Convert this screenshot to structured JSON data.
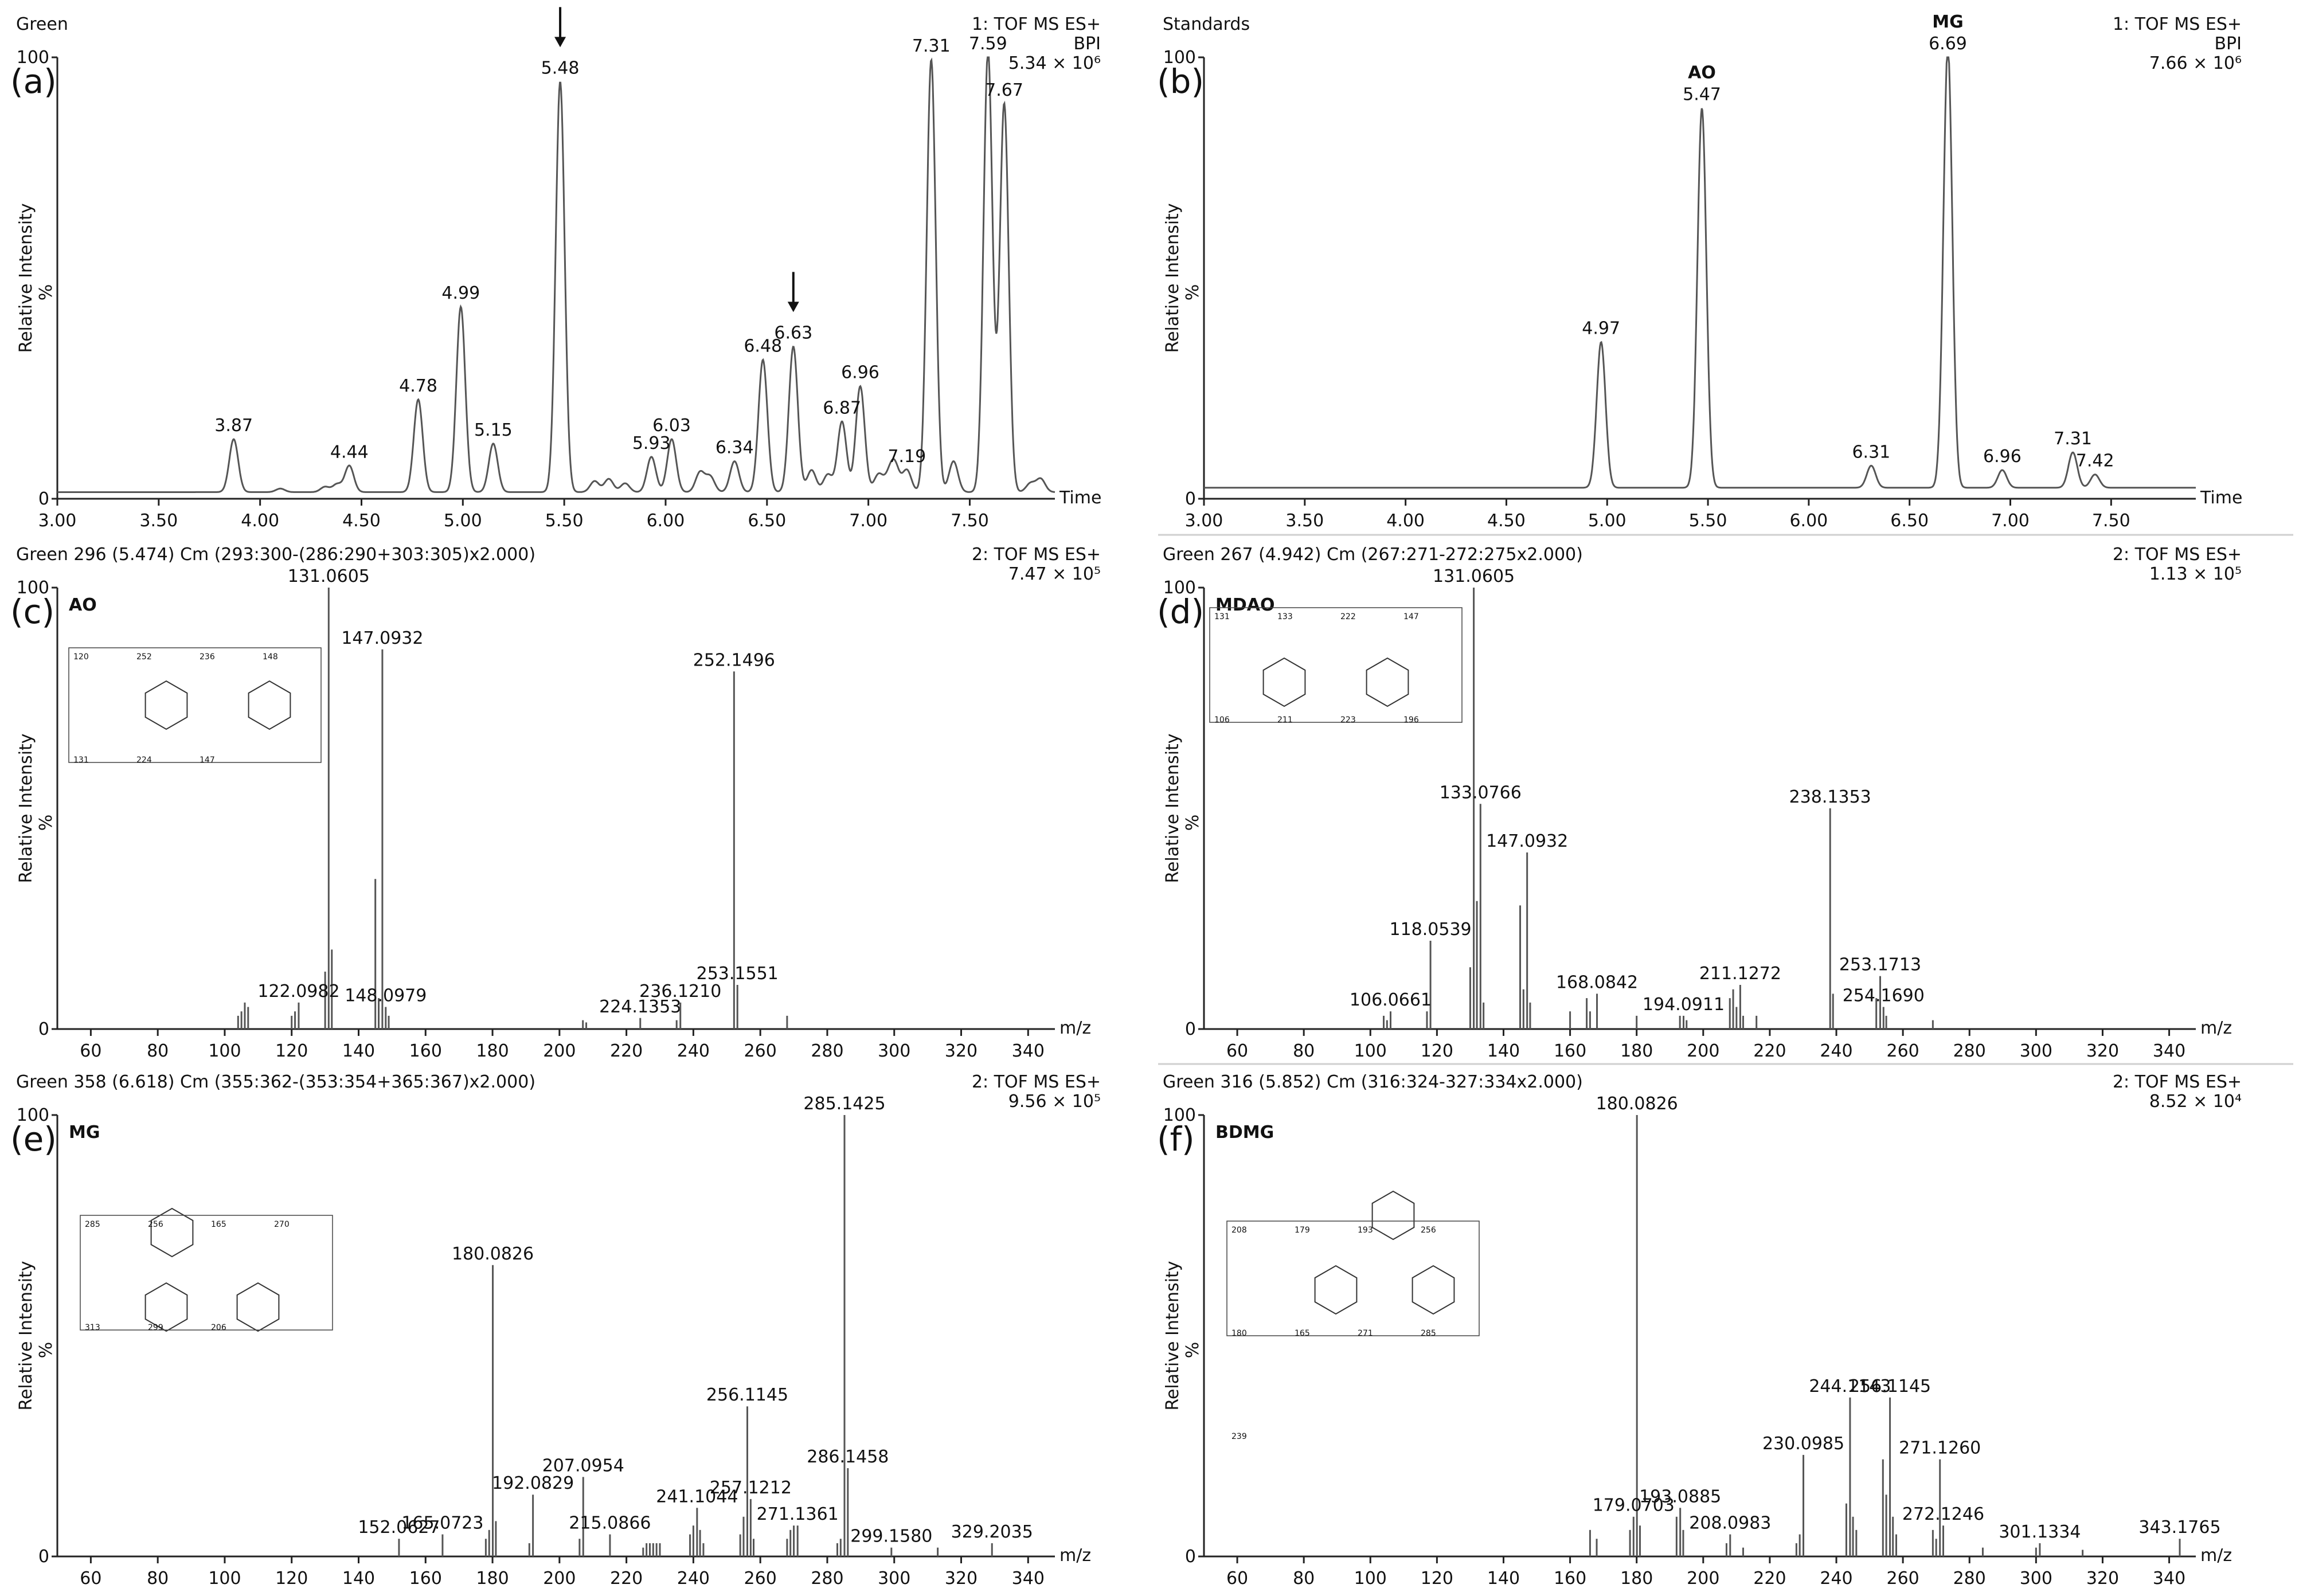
{
  "colors": {
    "trace": "#555555",
    "axis": "#222222",
    "text": "#111111",
    "separator": "#cfcfcf"
  },
  "chart_data": [
    {
      "id": "a",
      "type": "line",
      "panel_label": "(a)",
      "sample": "Green",
      "header_right": [
        "1: TOF MS ES+",
        "BPI",
        "5.34 × 10⁶"
      ],
      "xlabel": "Time",
      "ylabel": "Relative Intensity",
      "ylabel_unit": "%",
      "xlim": [
        3.0,
        7.92
      ],
      "ylim": [
        0,
        100
      ],
      "x_ticks": [
        "3.00",
        "3.50",
        "4.00",
        "4.50",
        "5.00",
        "5.50",
        "6.00",
        "6.50",
        "7.00",
        "7.50"
      ],
      "x_tick_values": [
        3.0,
        3.5,
        4.0,
        4.5,
        5.0,
        5.5,
        6.0,
        6.5,
        7.0,
        7.5
      ],
      "y_ticks": [
        "0",
        "100"
      ],
      "y_tick_values": [
        0,
        100
      ],
      "baseline": 1.5,
      "minor_peaks": [
        [
          4.1,
          0.8
        ],
        [
          4.32,
          1.2
        ],
        [
          4.38,
          1.8
        ],
        [
          5.65,
          2.5
        ],
        [
          5.72,
          3.0
        ],
        [
          5.8,
          2.0
        ],
        [
          6.17,
          4.5
        ],
        [
          6.22,
          3.5
        ],
        [
          6.72,
          5
        ],
        [
          6.8,
          4
        ],
        [
          7.05,
          4
        ],
        [
          7.1,
          3
        ],
        [
          7.13,
          6
        ],
        [
          7.42,
          7
        ],
        [
          7.8,
          2
        ],
        [
          7.85,
          3
        ]
      ],
      "peaks": [
        {
          "x": 3.87,
          "y": 12,
          "label": "3.87"
        },
        {
          "x": 4.44,
          "y": 6,
          "label": "4.44"
        },
        {
          "x": 4.78,
          "y": 21,
          "label": "4.78"
        },
        {
          "x": 4.99,
          "y": 42,
          "label": "4.99"
        },
        {
          "x": 5.15,
          "y": 11,
          "label": "5.15"
        },
        {
          "x": 5.48,
          "y": 93,
          "label": "5.48"
        },
        {
          "x": 5.93,
          "y": 8,
          "label": "5.93"
        },
        {
          "x": 6.03,
          "y": 12,
          "label": "6.03"
        },
        {
          "x": 6.34,
          "y": 7,
          "label": "6.34"
        },
        {
          "x": 6.48,
          "y": 30,
          "label": "6.48"
        },
        {
          "x": 6.63,
          "y": 33,
          "label": "6.63"
        },
        {
          "x": 6.87,
          "y": 16,
          "label": "6.87"
        },
        {
          "x": 6.96,
          "y": 24,
          "label": "6.96"
        },
        {
          "x": 7.19,
          "y": 5,
          "label": "7.19"
        },
        {
          "x": 7.31,
          "y": 98,
          "label": "7.31"
        },
        {
          "x": 7.59,
          "y": 100,
          "label": "7.59"
        },
        {
          "x": 7.67,
          "y": 88,
          "label": "7.67"
        }
      ],
      "arrows": [
        5.48,
        6.63
      ]
    },
    {
      "id": "b",
      "type": "line",
      "panel_label": "(b)",
      "sample": "Standards",
      "header_right": [
        "1: TOF MS ES+",
        "BPI",
        "7.66 × 10⁶"
      ],
      "xlabel": "Time",
      "ylabel": "Relative Intensity",
      "ylabel_unit": "%",
      "xlim": [
        3.0,
        7.92
      ],
      "ylim": [
        0,
        100
      ],
      "x_ticks": [
        "3.00",
        "3.50",
        "4.00",
        "4.50",
        "5.00",
        "5.50",
        "6.00",
        "6.50",
        "7.00",
        "7.50"
      ],
      "x_tick_values": [
        3.0,
        3.5,
        4.0,
        4.5,
        5.0,
        5.5,
        6.0,
        6.5,
        7.0,
        7.5
      ],
      "y_ticks": [
        "0",
        "100"
      ],
      "y_tick_values": [
        0,
        100
      ],
      "baseline": 2.5,
      "minor_peaks": [],
      "peaks": [
        {
          "x": 4.97,
          "y": 33,
          "label": "4.97"
        },
        {
          "x": 5.47,
          "y": 86,
          "label": "5.47",
          "name": "AO"
        },
        {
          "x": 6.31,
          "y": 5,
          "label": "6.31"
        },
        {
          "x": 6.69,
          "y": 100,
          "label": "6.69",
          "name": "MG"
        },
        {
          "x": 6.96,
          "y": 4,
          "label": "6.96"
        },
        {
          "x": 7.31,
          "y": 8,
          "label": "7.31"
        },
        {
          "x": 7.42,
          "y": 3,
          "label": "7.42"
        }
      ],
      "arrows": []
    },
    {
      "id": "c",
      "type": "bar",
      "panel_label": "(c)",
      "compound": "AO",
      "header_left": "Green 296 (5.474) Cm (293:300-(286:290+303:305)x2.000)",
      "header_right": [
        "2: TOF MS ES+",
        "7.47 × 10⁵"
      ],
      "xlabel": "m/z",
      "ylabel": "Relative Intensity",
      "ylabel_unit": "%",
      "xlim": [
        50,
        348
      ],
      "ylim": [
        0,
        100
      ],
      "x_ticks": [
        "60",
        "80",
        "100",
        "120",
        "140",
        "160",
        "180",
        "200",
        "220",
        "240",
        "260",
        "280",
        "300",
        "320",
        "340"
      ],
      "x_tick_values": [
        60,
        80,
        100,
        120,
        140,
        160,
        180,
        200,
        220,
        240,
        260,
        280,
        300,
        320,
        340
      ],
      "y_ticks": [
        "0",
        "100"
      ],
      "y_tick_values": [
        0,
        100
      ],
      "peaks": [
        {
          "x": 131.0605,
          "y": 100,
          "label": "131.0605"
        },
        {
          "x": 147.0932,
          "y": 86,
          "label": "147.0932"
        },
        {
          "x": 252.1496,
          "y": 81,
          "label": "252.1496"
        },
        {
          "x": 122.0982,
          "y": 6,
          "label": "122.0982"
        },
        {
          "x": 148.0979,
          "y": 5,
          "label": "148.0979"
        },
        {
          "x": 224.1353,
          "y": 2.5,
          "label": "224.1353"
        },
        {
          "x": 236.121,
          "y": 6,
          "label": "236.1210"
        },
        {
          "x": 253.1551,
          "y": 10,
          "label": "253.1551"
        }
      ],
      "minor": [
        [
          104,
          3
        ],
        [
          105,
          4
        ],
        [
          106,
          6
        ],
        [
          107,
          5
        ],
        [
          120,
          3
        ],
        [
          121,
          4
        ],
        [
          130,
          13
        ],
        [
          132,
          18
        ],
        [
          145,
          34
        ],
        [
          146,
          7
        ],
        [
          149,
          3
        ],
        [
          207,
          2
        ],
        [
          208,
          1.5
        ],
        [
          235,
          2
        ],
        [
          268,
          3
        ]
      ]
    },
    {
      "id": "d",
      "type": "bar",
      "panel_label": "(d)",
      "compound": "MDAO",
      "header_left": "Green 267 (4.942) Cm (267:271-272:275x2.000)",
      "header_right": [
        "2: TOF MS ES+",
        "1.13 × 10⁵"
      ],
      "xlabel": "m/z",
      "ylabel": "Relative Intensity",
      "ylabel_unit": "%",
      "xlim": [
        50,
        348
      ],
      "ylim": [
        0,
        100
      ],
      "x_ticks": [
        "60",
        "80",
        "100",
        "120",
        "140",
        "160",
        "180",
        "200",
        "220",
        "240",
        "260",
        "280",
        "300",
        "320",
        "340"
      ],
      "x_tick_values": [
        60,
        80,
        100,
        120,
        140,
        160,
        180,
        200,
        220,
        240,
        260,
        280,
        300,
        320,
        340
      ],
      "y_ticks": [
        "0",
        "100"
      ],
      "y_tick_values": [
        0,
        100
      ],
      "peaks": [
        {
          "x": 131.0605,
          "y": 100,
          "label": "131.0605"
        },
        {
          "x": 133.0766,
          "y": 51,
          "label": "133.0766"
        },
        {
          "x": 147.0932,
          "y": 40,
          "label": "147.0932"
        },
        {
          "x": 238.1353,
          "y": 50,
          "label": "238.1353"
        },
        {
          "x": 118.0539,
          "y": 20,
          "label": "118.0539"
        },
        {
          "x": 106.0661,
          "y": 4,
          "label": "106.0661"
        },
        {
          "x": 168.0842,
          "y": 8,
          "label": "168.0842"
        },
        {
          "x": 194.0911,
          "y": 3,
          "label": "194.0911"
        },
        {
          "x": 211.1272,
          "y": 10,
          "label": "211.1272"
        },
        {
          "x": 253.1713,
          "y": 12,
          "label": "253.1713"
        },
        {
          "x": 254.169,
          "y": 5,
          "label": "254.1690"
        }
      ],
      "minor": [
        [
          104,
          3
        ],
        [
          105,
          2
        ],
        [
          117,
          4
        ],
        [
          130,
          14
        ],
        [
          132,
          29
        ],
        [
          134,
          6
        ],
        [
          145,
          28
        ],
        [
          146,
          9
        ],
        [
          148,
          6
        ],
        [
          160,
          4
        ],
        [
          165,
          7
        ],
        [
          166,
          4
        ],
        [
          180,
          3
        ],
        [
          193,
          3
        ],
        [
          195,
          2
        ],
        [
          208,
          7
        ],
        [
          209,
          9
        ],
        [
          210,
          5
        ],
        [
          212,
          3
        ],
        [
          216,
          3
        ],
        [
          239,
          8
        ],
        [
          252,
          7
        ],
        [
          255,
          3
        ],
        [
          269,
          2
        ]
      ]
    },
    {
      "id": "e",
      "type": "bar",
      "panel_label": "(e)",
      "compound": "MG",
      "header_left": "Green 358 (6.618) Cm (355:362-(353:354+365:367)x2.000)",
      "header_right": [
        "2: TOF MS ES+",
        "9.56 × 10⁵"
      ],
      "xlabel": "m/z",
      "ylabel": "Relative Intensity",
      "ylabel_unit": "%",
      "xlim": [
        50,
        348
      ],
      "ylim": [
        0,
        100
      ],
      "x_ticks": [
        "60",
        "80",
        "100",
        "120",
        "140",
        "160",
        "180",
        "200",
        "220",
        "240",
        "260",
        "280",
        "300",
        "320",
        "340"
      ],
      "x_tick_values": [
        60,
        80,
        100,
        120,
        140,
        160,
        180,
        200,
        220,
        240,
        260,
        280,
        300,
        320,
        340
      ],
      "y_ticks": [
        "0",
        "100"
      ],
      "y_tick_values": [
        0,
        100
      ],
      "peaks": [
        {
          "x": 285.1425,
          "y": 100,
          "label": "285.1425"
        },
        {
          "x": 180.0826,
          "y": 66,
          "label": "180.0826"
        },
        {
          "x": 256.1145,
          "y": 34,
          "label": "256.1145"
        },
        {
          "x": 207.0954,
          "y": 18,
          "label": "207.0954"
        },
        {
          "x": 192.0829,
          "y": 14,
          "label": "192.0829"
        },
        {
          "x": 241.1044,
          "y": 11,
          "label": "241.1044"
        },
        {
          "x": 257.1212,
          "y": 13,
          "label": "257.1212"
        },
        {
          "x": 286.1458,
          "y": 20,
          "label": "286.1458"
        },
        {
          "x": 215.0866,
          "y": 5,
          "label": "215.0866"
        },
        {
          "x": 271.1361,
          "y": 7,
          "label": "271.1361"
        },
        {
          "x": 152.0627,
          "y": 4,
          "label": "152.0627"
        },
        {
          "x": 165.0723,
          "y": 5,
          "label": "165.0723"
        },
        {
          "x": 299.158,
          "y": 2,
          "label": "299.1580"
        },
        {
          "x": 329.2035,
          "y": 3,
          "label": "329.2035"
        }
      ],
      "minor": [
        [
          178,
          4
        ],
        [
          179,
          6
        ],
        [
          181,
          8
        ],
        [
          191,
          3
        ],
        [
          206,
          4
        ],
        [
          225,
          2
        ],
        [
          226,
          3
        ],
        [
          227,
          3
        ],
        [
          228,
          3
        ],
        [
          229,
          3
        ],
        [
          230,
          3
        ],
        [
          239,
          5
        ],
        [
          240,
          7
        ],
        [
          242,
          6
        ],
        [
          243,
          3
        ],
        [
          254,
          5
        ],
        [
          255,
          9
        ],
        [
          258,
          4
        ],
        [
          268,
          4
        ],
        [
          269,
          6
        ],
        [
          270,
          7
        ],
        [
          283,
          3
        ],
        [
          284,
          4
        ],
        [
          313,
          2
        ]
      ]
    },
    {
      "id": "f",
      "type": "bar",
      "panel_label": "(f)",
      "compound": "BDMG",
      "header_left": "Green 316 (5.852) Cm (316:324-327:334x2.000)",
      "header_right": [
        "2: TOF MS ES+",
        "8.52 × 10⁴"
      ],
      "xlabel": "m/z",
      "ylabel": "Relative Intensity",
      "ylabel_unit": "%",
      "xlim": [
        50,
        348
      ],
      "ylim": [
        0,
        100
      ],
      "x_ticks": [
        "60",
        "80",
        "100",
        "120",
        "140",
        "160",
        "180",
        "200",
        "220",
        "240",
        "260",
        "280",
        "300",
        "320",
        "340"
      ],
      "x_tick_values": [
        60,
        80,
        100,
        120,
        140,
        160,
        180,
        200,
        220,
        240,
        260,
        280,
        300,
        320,
        340
      ],
      "y_ticks": [
        "0",
        "100"
      ],
      "y_tick_values": [
        0,
        100
      ],
      "peaks": [
        {
          "x": 180.0826,
          "y": 100,
          "label": "180.0826"
        },
        {
          "x": 244.1143,
          "y": 36,
          "label": "244.1143"
        },
        {
          "x": 256.1145,
          "y": 36,
          "label": "256.1145"
        },
        {
          "x": 230.0985,
          "y": 23,
          "label": "230.0985"
        },
        {
          "x": 271.126,
          "y": 22,
          "label": "271.1260"
        },
        {
          "x": 179.0703,
          "y": 9,
          "label": "179.0703"
        },
        {
          "x": 193.0885,
          "y": 11,
          "label": "193.0885"
        },
        {
          "x": 208.0983,
          "y": 5,
          "label": "208.0983"
        },
        {
          "x": 272.1246,
          "y": 7,
          "label": "272.1246"
        },
        {
          "x": 301.1334,
          "y": 3,
          "label": "301.1334"
        },
        {
          "x": 343.1765,
          "y": 4,
          "label": "343.1765"
        }
      ],
      "minor": [
        [
          166,
          6
        ],
        [
          168,
          4
        ],
        [
          178,
          6
        ],
        [
          181,
          7
        ],
        [
          192,
          9
        ],
        [
          194,
          6
        ],
        [
          207,
          3
        ],
        [
          212,
          2
        ],
        [
          228,
          3
        ],
        [
          229,
          5
        ],
        [
          243,
          12
        ],
        [
          245,
          9
        ],
        [
          246,
          6
        ],
        [
          254,
          22
        ],
        [
          255,
          14
        ],
        [
          257,
          9
        ],
        [
          258,
          5
        ],
        [
          269,
          6
        ],
        [
          270,
          4
        ],
        [
          284,
          2
        ],
        [
          300,
          2
        ],
        [
          314,
          1.5
        ]
      ]
    }
  ],
  "structures": {
    "c": [
      "120",
      "252",
      "236",
      "148",
      "131",
      "224",
      "147"
    ],
    "d": [
      "131",
      "133",
      "222",
      "147",
      "106",
      "211",
      "223",
      "196"
    ],
    "e": [
      "285",
      "256",
      "165",
      "270",
      "313",
      "299",
      "206"
    ],
    "f": [
      "208",
      "179",
      "193",
      "256",
      "180",
      "165",
      "271",
      "285",
      "239"
    ]
  }
}
